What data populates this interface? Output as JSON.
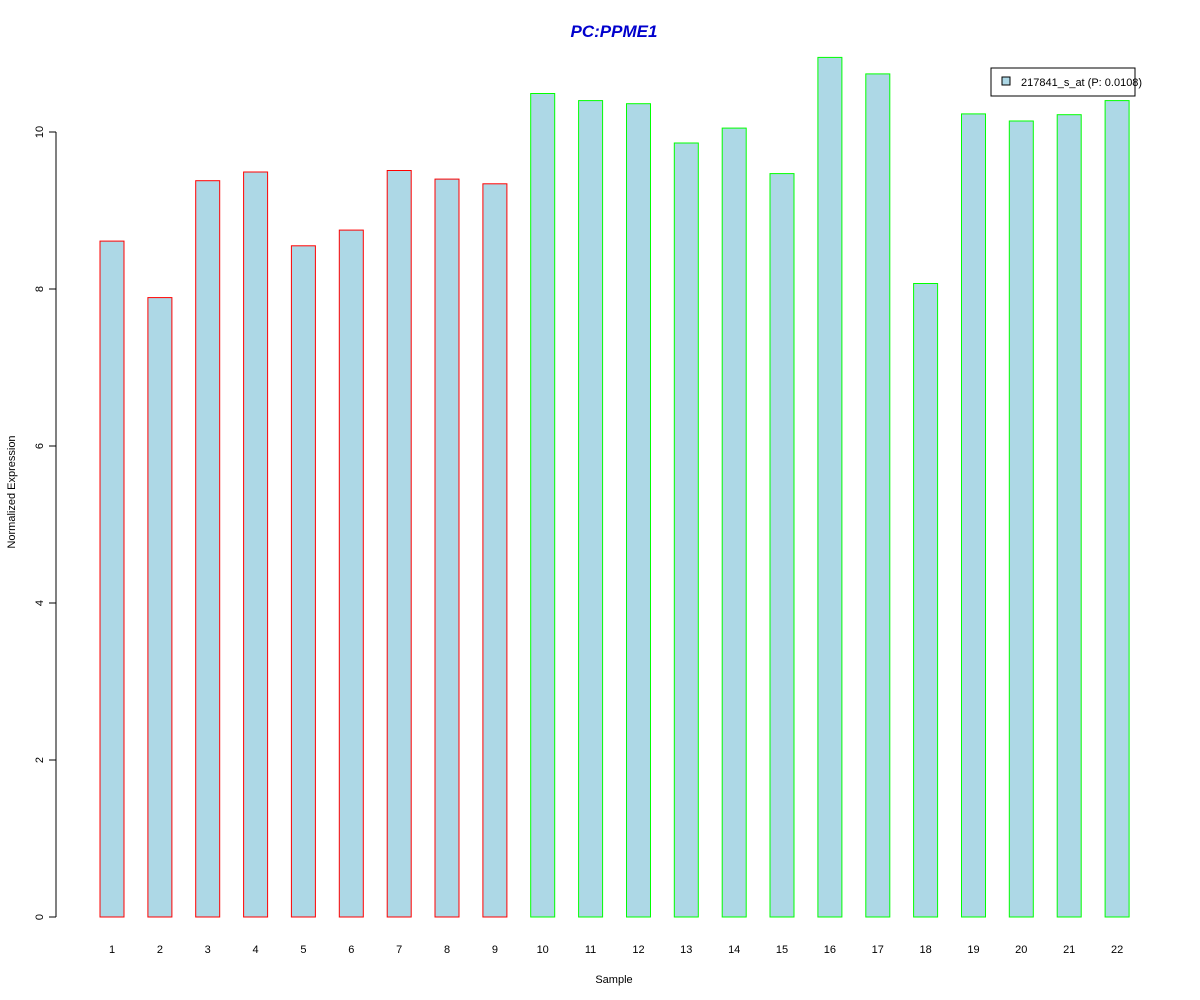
{
  "chart_data": {
    "type": "bar",
    "title": "PC:PPME1",
    "xlabel": "Sample",
    "ylabel": "Normalized Expression",
    "categories": [
      "1",
      "2",
      "3",
      "4",
      "5",
      "6",
      "7",
      "8",
      "9",
      "10",
      "11",
      "12",
      "13",
      "14",
      "15",
      "16",
      "17",
      "18",
      "19",
      "20",
      "21",
      "22"
    ],
    "series": [
      {
        "name": "217841_s_at (P: 0.0108)",
        "values": [
          8.61,
          7.89,
          9.38,
          9.49,
          8.55,
          8.75,
          9.51,
          9.4,
          9.34,
          10.49,
          10.4,
          10.36,
          9.86,
          10.05,
          9.47,
          10.95,
          10.74,
          8.07,
          10.23,
          10.14,
          10.22,
          10.4
        ]
      }
    ],
    "groups": [
      "red",
      "red",
      "red",
      "red",
      "red",
      "red",
      "red",
      "red",
      "red",
      "green",
      "green",
      "green",
      "green",
      "green",
      "green",
      "green",
      "green",
      "green",
      "green",
      "green",
      "green",
      "green"
    ],
    "ylim": [
      0,
      11
    ],
    "yticks": [
      0,
      2,
      4,
      6,
      8,
      10
    ],
    "grid": false,
    "legend_position": "top-right"
  },
  "colors": {
    "bar_fill": "#add8e6",
    "border_red": "#ff0000",
    "border_green": "#00ff00",
    "title": "#0000cd",
    "axis": "#000000"
  }
}
